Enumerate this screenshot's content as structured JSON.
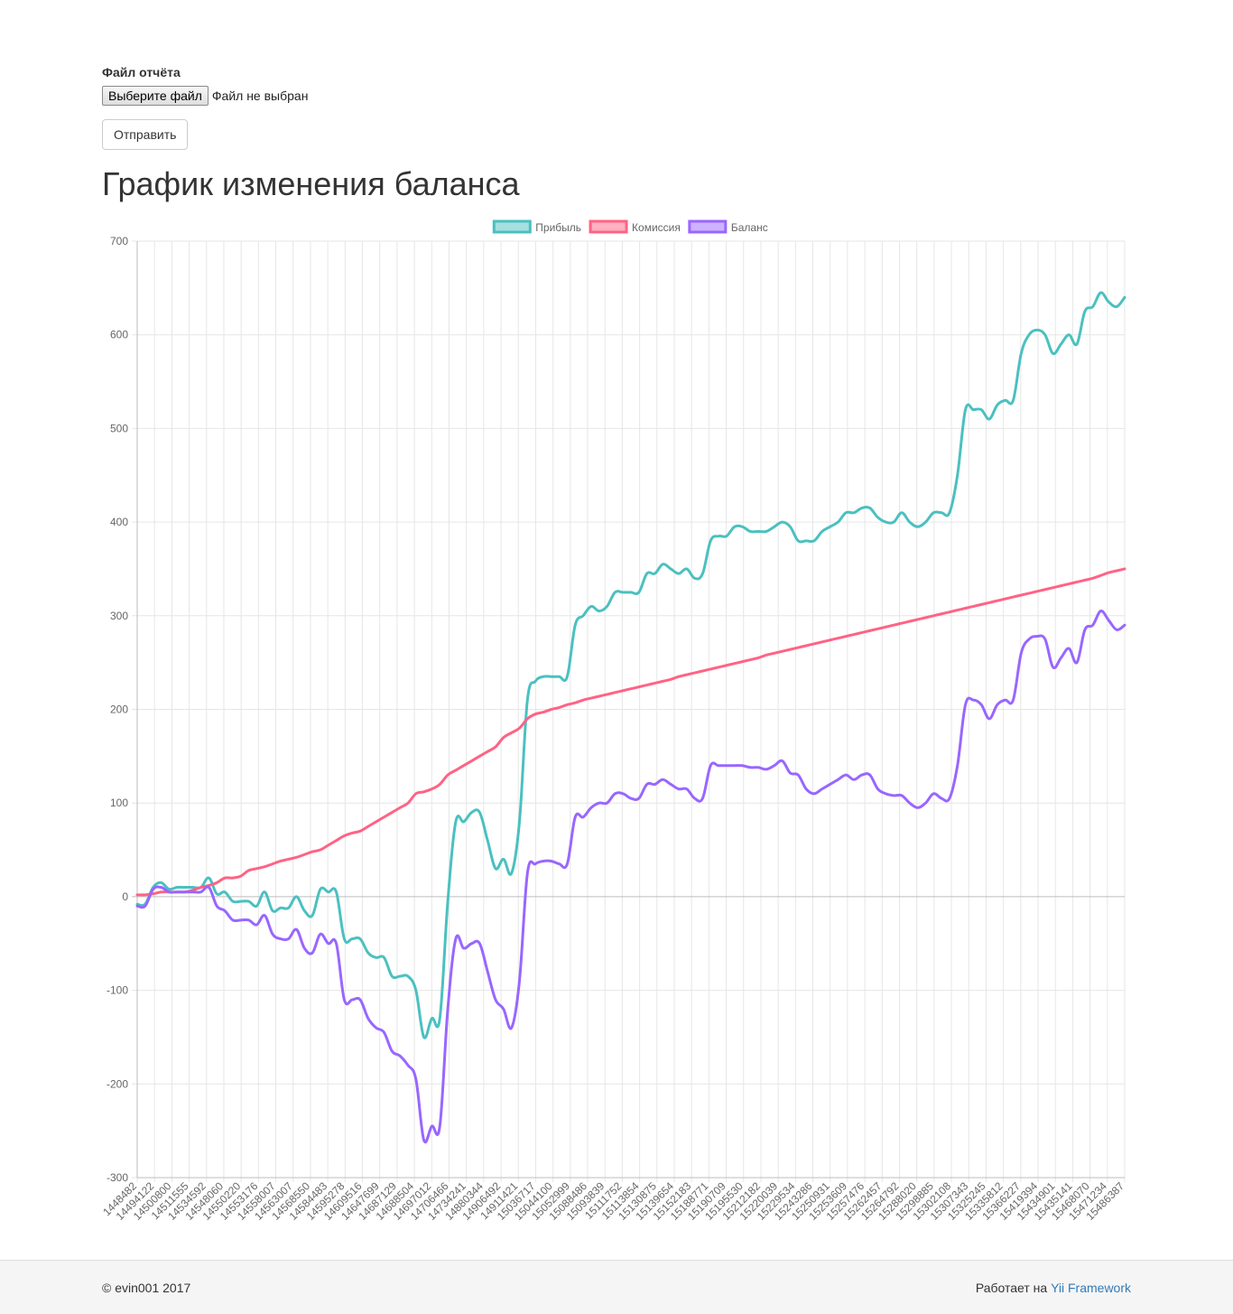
{
  "form": {
    "label": "Файл отчёта",
    "file_button_label": "Выберите файл",
    "file_status": "Файл не выбран",
    "submit_label": "Отправить"
  },
  "page": {
    "title": "График изменения баланса"
  },
  "footer": {
    "copyright": "© evin001 2017",
    "powered_prefix": "Работает на",
    "powered_link": "Yii Framework"
  },
  "chart_data": {
    "type": "line",
    "legend_position": "top",
    "grid": true,
    "ylim": [
      -300,
      700
    ],
    "yticks": [
      700,
      600,
      500,
      400,
      300,
      200,
      100,
      0,
      -100,
      -200,
      -300
    ],
    "x_tick_labels": [
      "1448482",
      "14494122",
      "14500800",
      "14511555",
      "14534592",
      "14548060",
      "14550220",
      "14553176",
      "14558007",
      "14563007",
      "14568550",
      "14584483",
      "14595278",
      "14609516",
      "14647699",
      "14687129",
      "14688504",
      "14697012",
      "14706466",
      "14734241",
      "14880344",
      "14906492",
      "14911421",
      "15036717",
      "15044100",
      "15052999",
      "15088486",
      "15093839",
      "15111752",
      "15113854",
      "15130875",
      "15139654",
      "15152183",
      "15188771",
      "15190709",
      "15195530",
      "15212182",
      "15220039",
      "15229534",
      "15243286",
      "15250931",
      "15253609",
      "15257476",
      "15262457",
      "15264792",
      "15288020",
      "15298885",
      "15302108",
      "15307343",
      "15325245",
      "15335812",
      "15366227",
      "15419394",
      "15434901",
      "15435141",
      "15468070",
      "15471234",
      "15486387"
    ],
    "series": [
      {
        "name": "Прибыль",
        "color": "#4bc0c0",
        "fill": "rgba(75,192,192,0.5)",
        "values": [
          -8,
          -8,
          10,
          15,
          8,
          10,
          10,
          10,
          10,
          20,
          3,
          5,
          -5,
          -5,
          -5,
          -10,
          5,
          -15,
          -12,
          -12,
          0,
          -15,
          -20,
          8,
          5,
          5,
          -45,
          -45,
          -45,
          -60,
          -65,
          -65,
          -85,
          -85,
          -85,
          -100,
          -150,
          -130,
          -130,
          -5,
          80,
          80,
          90,
          90,
          60,
          30,
          40,
          25,
          80,
          210,
          230,
          235,
          235,
          235,
          235,
          290,
          300,
          310,
          305,
          310,
          325,
          325,
          325,
          325,
          345,
          345,
          355,
          350,
          345,
          350,
          340,
          345,
          380,
          385,
          385,
          395,
          395,
          390,
          390,
          390,
          395,
          400,
          395,
          380,
          380,
          380,
          390,
          395,
          400,
          410,
          410,
          415,
          415,
          405,
          400,
          400,
          410,
          400,
          395,
          400,
          410,
          410,
          410,
          450,
          520,
          520,
          520,
          510,
          525,
          530,
          530,
          580,
          600,
          605,
          600,
          580,
          590,
          600,
          590,
          625,
          630,
          645,
          635,
          630,
          640
        ]
      },
      {
        "name": "Комиссия",
        "color": "#ff6384",
        "fill": "rgba(255,99,132,0.5)",
        "values": [
          2,
          2,
          3,
          5,
          5,
          5,
          5,
          7,
          10,
          12,
          15,
          20,
          20,
          22,
          28,
          30,
          32,
          35,
          38,
          40,
          42,
          45,
          48,
          50,
          55,
          60,
          65,
          68,
          70,
          75,
          80,
          85,
          90,
          95,
          100,
          110,
          112,
          115,
          120,
          130,
          135,
          140,
          145,
          150,
          155,
          160,
          170,
          175,
          180,
          190,
          195,
          197,
          200,
          202,
          205,
          207,
          210,
          212,
          214,
          216,
          218,
          220,
          222,
          224,
          226,
          228,
          230,
          232,
          235,
          237,
          239,
          241,
          243,
          245,
          247,
          249,
          251,
          253,
          255,
          258,
          260,
          262,
          264,
          266,
          268,
          270,
          272,
          274,
          276,
          278,
          280,
          282,
          284,
          286,
          288,
          290,
          292,
          294,
          296,
          298,
          300,
          302,
          304,
          306,
          308,
          310,
          312,
          314,
          316,
          318,
          320,
          322,
          324,
          326,
          328,
          330,
          332,
          334,
          336,
          338,
          340,
          343,
          346,
          348,
          350
        ]
      },
      {
        "name": "Баланс",
        "color": "#9966ff",
        "fill": "rgba(153,102,255,0.5)",
        "values": [
          -10,
          -10,
          8,
          10,
          5,
          5,
          5,
          5,
          5,
          10,
          -10,
          -15,
          -25,
          -25,
          -25,
          -30,
          -20,
          -40,
          -45,
          -45,
          -35,
          -55,
          -60,
          -40,
          -50,
          -50,
          -110,
          -110,
          -110,
          -130,
          -140,
          -145,
          -165,
          -170,
          -180,
          -195,
          -260,
          -245,
          -245,
          -120,
          -45,
          -55,
          -50,
          -50,
          -80,
          -110,
          -120,
          -140,
          -90,
          25,
          35,
          38,
          38,
          35,
          35,
          85,
          85,
          95,
          100,
          100,
          110,
          110,
          105,
          105,
          120,
          120,
          125,
          120,
          115,
          115,
          105,
          105,
          140,
          140,
          140,
          140,
          140,
          138,
          138,
          136,
          140,
          145,
          132,
          130,
          115,
          110,
          115,
          120,
          125,
          130,
          125,
          130,
          130,
          115,
          110,
          108,
          108,
          100,
          95,
          100,
          110,
          105,
          105,
          140,
          205,
          210,
          205,
          190,
          205,
          210,
          210,
          260,
          275,
          278,
          275,
          245,
          255,
          265,
          250,
          285,
          290,
          305,
          295,
          285,
          290
        ]
      }
    ]
  }
}
